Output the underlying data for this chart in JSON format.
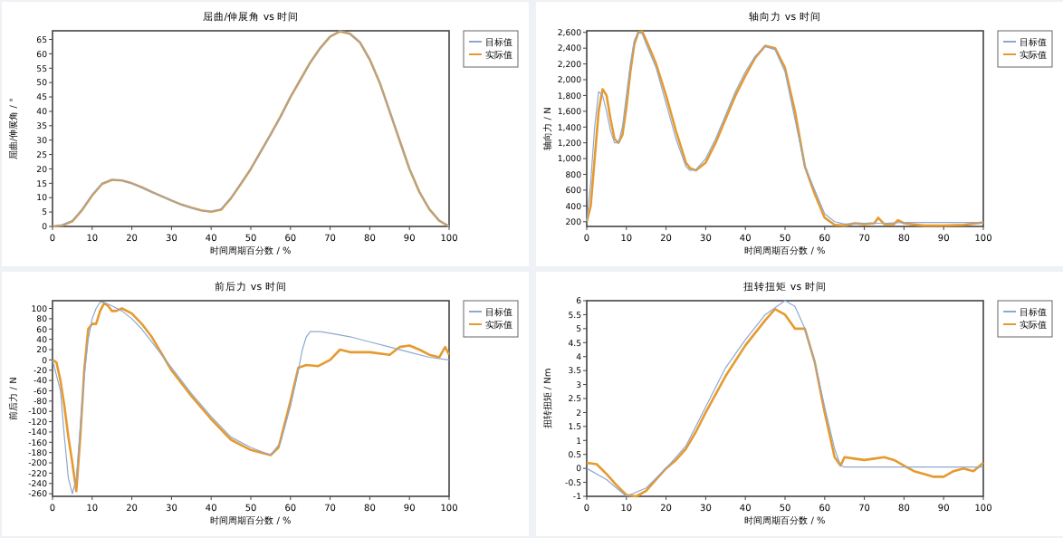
{
  "chart_data": [
    {
      "type": "line",
      "title": "屈曲/伸展角 vs 时间",
      "xlabel": "时间周期百分数 / %",
      "ylabel": "屈曲/伸展角 / °",
      "xlim": [
        0,
        100
      ],
      "xticks": [
        0,
        10,
        20,
        30,
        40,
        50,
        60,
        70,
        80,
        90,
        100
      ],
      "ylim": [
        0,
        68
      ],
      "yticks": [
        0,
        5,
        10,
        15,
        20,
        25,
        30,
        35,
        40,
        45,
        50,
        55,
        60,
        65
      ],
      "legend": "top right",
      "series": [
        {
          "name": "目标值",
          "color": "#8fa8d0",
          "x": [
            0,
            2.5,
            5,
            7.5,
            10,
            12.5,
            15,
            17.5,
            20,
            22.5,
            25,
            27.5,
            30,
            32.5,
            35,
            37.5,
            40,
            42.5,
            45,
            47.5,
            50,
            52.5,
            55,
            57.5,
            60,
            62.5,
            65,
            67.5,
            70,
            72.5,
            75,
            77.5,
            80,
            82.5,
            85,
            87.5,
            90,
            92.5,
            95,
            97.5,
            100
          ],
          "values": [
            0,
            0.5,
            2,
            6,
            11,
            15,
            16.3,
            16,
            15,
            13.5,
            12,
            10.5,
            9,
            7.5,
            6.5,
            5.5,
            5.2,
            6,
            10,
            15,
            20,
            26,
            32,
            38,
            45,
            51,
            57,
            62,
            66,
            68,
            67,
            64,
            58,
            50,
            40,
            30,
            20,
            12,
            6,
            2,
            0
          ]
        },
        {
          "name": "实际值",
          "color": "#e69a2e",
          "x": [
            0,
            2.5,
            5,
            7.5,
            10,
            12.5,
            15,
            17.5,
            20,
            22.5,
            25,
            27.5,
            30,
            32.5,
            35,
            37.5,
            40,
            42.5,
            45,
            47.5,
            50,
            52.5,
            55,
            57.5,
            60,
            62.5,
            65,
            67.5,
            70,
            72.5,
            75,
            77.5,
            80,
            82.5,
            85,
            87.5,
            90,
            92.5,
            95,
            97.5,
            100
          ],
          "values": [
            0,
            0.4,
            1.8,
            5.8,
            10.8,
            14.8,
            16.2,
            16,
            15,
            13.6,
            12,
            10.5,
            9,
            7.6,
            6.5,
            5.6,
            5.1,
            5.8,
            9.8,
            14.8,
            20,
            26,
            32,
            38.2,
            45,
            51,
            57,
            62,
            66,
            67.8,
            67,
            64,
            58,
            50,
            40,
            30,
            20,
            12,
            6,
            2,
            0
          ]
        }
      ]
    },
    {
      "type": "line",
      "title": "轴向力 vs 时间",
      "xlabel": "时间周期百分数 / %",
      "ylabel": "轴向力 / N",
      "xlim": [
        0,
        100
      ],
      "xticks": [
        0,
        10,
        20,
        30,
        40,
        50,
        60,
        70,
        80,
        90,
        100
      ],
      "ylim": [
        140,
        2620
      ],
      "yticks": [
        200,
        400,
        600,
        800,
        {
          "value": 1000,
          "label": "1,000"
        },
        {
          "value": 1200,
          "label": "1,200"
        },
        {
          "value": 1400,
          "label": "1,400"
        },
        {
          "value": 1600,
          "label": "1,600"
        },
        {
          "value": 1800,
          "label": "1,800"
        },
        {
          "value": 2000,
          "label": "2,000"
        },
        {
          "value": 2200,
          "label": "2,200"
        },
        {
          "value": 2400,
          "label": "2,400"
        },
        {
          "value": 2600,
          "label": "2,600"
        }
      ],
      "legend": "top right",
      "series": [
        {
          "name": "目标值",
          "color": "#8fa8d0",
          "x": [
            0,
            1,
            2,
            3,
            4,
            5,
            6,
            7,
            8,
            9,
            10,
            11,
            12,
            13,
            14,
            15,
            17.5,
            20,
            22.5,
            25,
            26,
            27.5,
            30,
            32.5,
            35,
            37.5,
            40,
            42.5,
            45,
            47.5,
            50,
            52.5,
            55,
            57.5,
            60,
            62.5,
            65,
            70,
            75,
            80,
            85,
            90,
            95,
            100
          ],
          "values": [
            200,
            700,
            1400,
            1850,
            1800,
            1600,
            1350,
            1200,
            1200,
            1400,
            1800,
            2200,
            2500,
            2600,
            2580,
            2450,
            2150,
            1700,
            1250,
            900,
            850,
            860,
            1000,
            1250,
            1550,
            1850,
            2100,
            2300,
            2420,
            2380,
            2100,
            1500,
            900,
            600,
            300,
            200,
            170,
            180,
            180,
            190,
            190,
            190,
            190,
            190
          ]
        },
        {
          "name": "实际值",
          "color": "#e69a2e",
          "x": [
            0,
            1,
            2,
            3,
            4,
            5,
            6,
            7,
            8,
            9,
            10,
            11,
            12,
            13,
            14,
            15,
            17.5,
            20,
            22.5,
            25,
            26,
            27.5,
            30,
            32.5,
            35,
            37.5,
            40,
            42.5,
            45,
            47.5,
            50,
            52.5,
            55,
            57.5,
            60,
            62.5,
            65,
            67.5,
            70,
            72.5,
            73.5,
            75,
            77.5,
            78.5,
            80,
            85,
            90,
            95,
            100
          ],
          "values": [
            200,
            400,
            1000,
            1600,
            1880,
            1800,
            1500,
            1250,
            1200,
            1300,
            1650,
            2100,
            2450,
            2600,
            2610,
            2500,
            2200,
            1800,
            1350,
            950,
            880,
            850,
            950,
            1200,
            1500,
            1800,
            2050,
            2280,
            2430,
            2400,
            2150,
            1600,
            900,
            550,
            250,
            160,
            150,
            180,
            170,
            180,
            250,
            170,
            170,
            220,
            180,
            150,
            150,
            160,
            190
          ]
        }
      ]
    },
    {
      "type": "line",
      "title": "前后力 vs 时间",
      "xlabel": "时间周期百分数 / %",
      "ylabel": "前后力 / N",
      "xlim": [
        0,
        100
      ],
      "xticks": [
        0,
        10,
        20,
        30,
        40,
        50,
        60,
        70,
        80,
        90,
        100
      ],
      "ylim": [
        -265,
        115
      ],
      "yticks": [
        -260,
        -240,
        -220,
        -200,
        -180,
        -160,
        -140,
        -120,
        -100,
        -80,
        -60,
        -40,
        -20,
        0,
        20,
        40,
        60,
        80,
        100
      ],
      "legend": "top right",
      "series": [
        {
          "name": "目标值",
          "color": "#8fa8d0",
          "x": [
            0,
            2,
            3,
            4,
            5,
            6,
            7,
            8,
            9,
            10,
            11,
            12,
            13,
            15,
            17.5,
            20,
            22.5,
            25,
            30,
            35,
            40,
            45,
            50,
            55,
            57.5,
            60,
            62,
            63,
            64,
            65,
            67.5,
            70,
            75,
            80,
            85,
            90,
            95,
            100
          ],
          "values": [
            0,
            -60,
            -150,
            -230,
            -260,
            -230,
            -130,
            -30,
            40,
            80,
            100,
            112,
            112,
            105,
            95,
            80,
            60,
            35,
            -15,
            -65,
            -110,
            -150,
            -170,
            -185,
            -160,
            -90,
            -20,
            20,
            45,
            55,
            55,
            52,
            45,
            35,
            25,
            15,
            5,
            0
          ]
        },
        {
          "name": "实际值",
          "color": "#e69a2e",
          "x": [
            0,
            1,
            2,
            3,
            4,
            5,
            6,
            7,
            8,
            9,
            10,
            11,
            12,
            13,
            14,
            15,
            16,
            17.5,
            20,
            22.5,
            25,
            30,
            35,
            40,
            45,
            50,
            55,
            57,
            60,
            62,
            64,
            67,
            70,
            72.5,
            75,
            80,
            85,
            87.5,
            90,
            92.5,
            95,
            97.5,
            99,
            100
          ],
          "values": [
            0,
            -5,
            -40,
            -90,
            -150,
            -200,
            -255,
            -150,
            -20,
            60,
            70,
            70,
            95,
            110,
            105,
            95,
            95,
            100,
            90,
            70,
            45,
            -20,
            -70,
            -115,
            -155,
            -175,
            -185,
            -170,
            -80,
            -15,
            -10,
            -12,
            0,
            20,
            15,
            15,
            10,
            25,
            28,
            20,
            10,
            5,
            25,
            10
          ]
        }
      ]
    },
    {
      "type": "line",
      "title": "扭转扭矩 vs 时间",
      "xlabel": "时间周期百分数 / %",
      "ylabel": "扭转扭矩 / Nm",
      "xlim": [
        0,
        100
      ],
      "xticks": [
        0,
        10,
        20,
        30,
        40,
        50,
        60,
        70,
        80,
        90,
        100
      ],
      "ylim": [
        -1,
        6
      ],
      "yticks": [
        -1,
        -0.5,
        0,
        0.5,
        1,
        1.5,
        2,
        2.5,
        3,
        3.5,
        4,
        4.5,
        5,
        5.5,
        6
      ],
      "legend": "top right",
      "series": [
        {
          "name": "目标值",
          "color": "#8fa8d0",
          "x": [
            0,
            5,
            10,
            15,
            20,
            25,
            30,
            35,
            40,
            45,
            50,
            52.5,
            55,
            57.5,
            60,
            62.5,
            64,
            65,
            70,
            80,
            90,
            100
          ],
          "values": [
            0,
            -0.4,
            -1,
            -0.7,
            0,
            0.8,
            2.2,
            3.6,
            4.6,
            5.5,
            6,
            5.8,
            5,
            3.8,
            2.2,
            0.7,
            0.1,
            0.05,
            0.05,
            0.05,
            0.05,
            0.05
          ]
        },
        {
          "name": "实际值",
          "color": "#e69a2e",
          "x": [
            0,
            2.5,
            5,
            7.5,
            10,
            12.5,
            15,
            17.5,
            20,
            22.5,
            25,
            27.5,
            30,
            35,
            40,
            45,
            47.5,
            50,
            52.5,
            55,
            57.5,
            60,
            62.5,
            64,
            65,
            67.5,
            70,
            72.5,
            75,
            77.5,
            80,
            82.5,
            85,
            87.5,
            90,
            92.5,
            95,
            97.5,
            100
          ],
          "values": [
            0.2,
            0.15,
            -0.2,
            -0.6,
            -0.95,
            -1,
            -0.8,
            -0.4,
            0,
            0.3,
            0.7,
            1.3,
            2,
            3.3,
            4.4,
            5.3,
            5.7,
            5.5,
            5,
            5,
            3.8,
            2,
            0.4,
            0.1,
            0.4,
            0.35,
            0.3,
            0.35,
            0.4,
            0.3,
            0.1,
            -0.1,
            -0.2,
            -0.3,
            -0.3,
            -0.1,
            0,
            -0.1,
            0.2
          ]
        }
      ]
    }
  ]
}
